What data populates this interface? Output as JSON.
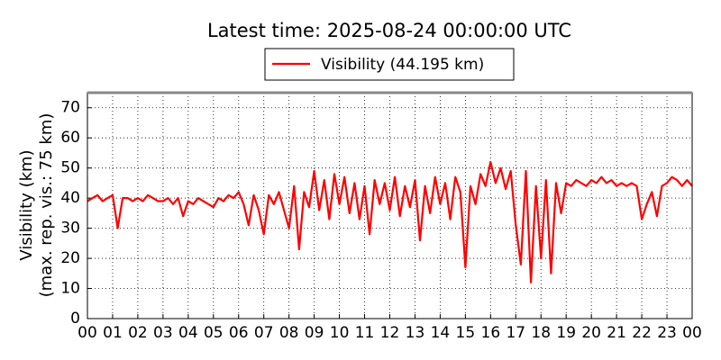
{
  "chart_data": {
    "type": "line",
    "title": "Latest time: 2025-08-24 00:00:00 UTC",
    "ylabel": [
      "Visibility (km)",
      "(max. rep. vis.: 75 km)"
    ],
    "x": [
      0,
      0.2,
      0.4,
      0.6,
      0.8,
      1,
      1.2,
      1.4,
      1.6,
      1.8,
      2,
      2.2,
      2.4,
      2.6,
      2.8,
      3,
      3.2,
      3.4,
      3.6,
      3.8,
      4,
      4.2,
      4.4,
      4.6,
      4.8,
      5,
      5.2,
      5.4,
      5.6,
      5.8,
      6,
      6.2,
      6.4,
      6.6,
      6.8,
      7,
      7.2,
      7.4,
      7.6,
      7.8,
      8,
      8.2,
      8.4,
      8.6,
      8.8,
      9,
      9.2,
      9.4,
      9.6,
      9.8,
      10,
      10.2,
      10.4,
      10.6,
      10.8,
      11,
      11.2,
      11.4,
      11.6,
      11.8,
      12,
      12.2,
      12.4,
      12.6,
      12.8,
      13,
      13.2,
      13.4,
      13.6,
      13.8,
      14,
      14.2,
      14.4,
      14.6,
      14.8,
      15,
      15.2,
      15.4,
      15.6,
      15.8,
      16,
      16.2,
      16.4,
      16.6,
      16.8,
      17,
      17.2,
      17.4,
      17.6,
      17.8,
      18,
      18.2,
      18.4,
      18.6,
      18.8,
      19,
      19.2,
      19.4,
      19.6,
      19.8,
      20,
      20.2,
      20.4,
      20.6,
      20.8,
      21,
      21.2,
      21.4,
      21.6,
      21.8,
      22,
      22.2,
      22.4,
      22.6,
      22.8,
      23,
      23.2,
      23.4,
      23.6,
      23.8,
      24
    ],
    "series": [
      {
        "name": "Visibility (44.195 km)",
        "color": "#ff0000",
        "values": [
          39,
          40,
          41,
          39,
          40,
          41,
          30,
          40,
          40,
          39,
          40,
          39,
          41,
          40,
          39,
          39,
          40,
          38,
          40,
          34,
          39,
          38,
          40,
          39,
          38,
          37,
          40,
          39,
          41,
          40,
          42,
          38,
          31,
          41,
          36,
          28,
          41,
          38,
          42,
          36,
          30,
          44,
          23,
          42,
          37,
          49,
          36,
          46,
          33,
          48,
          38,
          47,
          35,
          45,
          33,
          44,
          28,
          46,
          38,
          45,
          36,
          47,
          34,
          44,
          37,
          46,
          26,
          44,
          35,
          47,
          38,
          45,
          33,
          47,
          42,
          17,
          44,
          38,
          48,
          44,
          52,
          45,
          50,
          43,
          49,
          31,
          18,
          49,
          12,
          44,
          20,
          46,
          15,
          45,
          35,
          45,
          44,
          46,
          45,
          44,
          46,
          45,
          47,
          45,
          46,
          44,
          45,
          44,
          45,
          44,
          33,
          38,
          42,
          34,
          44,
          45,
          47,
          46,
          44,
          46,
          44
        ]
      }
    ],
    "xlim": [
      0,
      24
    ],
    "xticks": [
      {
        "value": 0,
        "label": "00"
      },
      {
        "value": 1,
        "label": "01"
      },
      {
        "value": 2,
        "label": "02"
      },
      {
        "value": 3,
        "label": "03"
      },
      {
        "value": 4,
        "label": "04"
      },
      {
        "value": 5,
        "label": "05"
      },
      {
        "value": 6,
        "label": "06"
      },
      {
        "value": 7,
        "label": "07"
      },
      {
        "value": 8,
        "label": "08"
      },
      {
        "value": 9,
        "label": "09"
      },
      {
        "value": 10,
        "label": "10"
      },
      {
        "value": 11,
        "label": "11"
      },
      {
        "value": 12,
        "label": "12"
      },
      {
        "value": 13,
        "label": "13"
      },
      {
        "value": 14,
        "label": "14"
      },
      {
        "value": 15,
        "label": "15"
      },
      {
        "value": 16,
        "label": "16"
      },
      {
        "value": 17,
        "label": "17"
      },
      {
        "value": 18,
        "label": "18"
      },
      {
        "value": 19,
        "label": "19"
      },
      {
        "value": 20,
        "label": "20"
      },
      {
        "value": 21,
        "label": "21"
      },
      {
        "value": 22,
        "label": "22"
      },
      {
        "value": 23,
        "label": "23"
      },
      {
        "value": 24,
        "label": "00"
      }
    ],
    "ylim": [
      0,
      75
    ],
    "yticks": [
      0,
      10,
      20,
      30,
      40,
      50,
      60,
      70
    ],
    "grid": true,
    "legend": "top"
  }
}
